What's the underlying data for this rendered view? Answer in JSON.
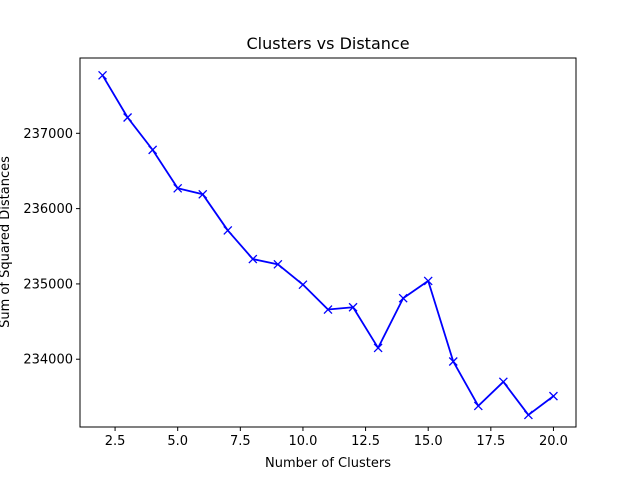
{
  "chart_data": {
    "type": "line",
    "title": "Clusters vs Distance",
    "xlabel": "Number of Clusters",
    "ylabel": "Sum of Squared Distances",
    "xlim": [
      1.1,
      20.9
    ],
    "ylim": [
      233100,
      238000
    ],
    "xticks": [
      2.5,
      5.0,
      7.5,
      10.0,
      12.5,
      15.0,
      17.5,
      20.0
    ],
    "xtick_labels": [
      "2.5",
      "5.0",
      "7.5",
      "10.0",
      "12.5",
      "15.0",
      "17.5",
      "20.0"
    ],
    "yticks": [
      234000,
      235000,
      236000,
      237000
    ],
    "ytick_labels": [
      "234000",
      "235000",
      "236000",
      "237000"
    ],
    "grid": false,
    "marker": "x",
    "line_color": "#0000ff",
    "series": [
      {
        "x": [
          2,
          3,
          4,
          5,
          6,
          7,
          8,
          9,
          10,
          11,
          12,
          13,
          14,
          15,
          16,
          17,
          18,
          19,
          20
        ],
        "values": [
          237770,
          237210,
          236780,
          236270,
          236190,
          235710,
          235330,
          235260,
          234990,
          234660,
          234690,
          234150,
          234810,
          235040,
          233970,
          233380,
          233700,
          233260,
          233510
        ]
      }
    ]
  }
}
